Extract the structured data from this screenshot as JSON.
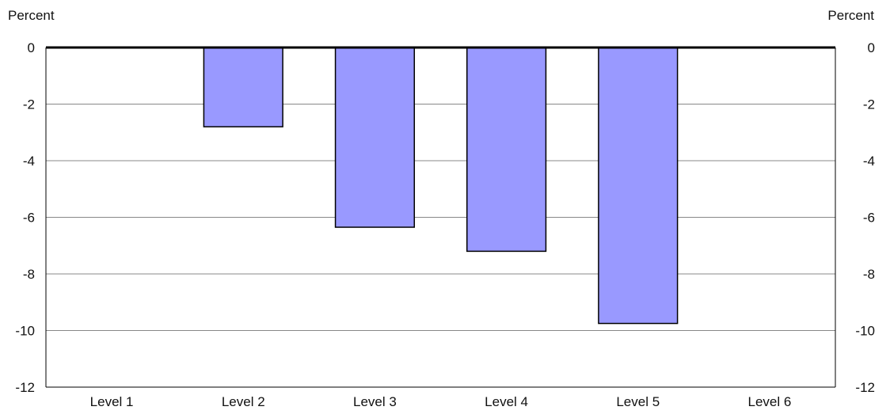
{
  "chart_data": {
    "type": "bar",
    "title": "",
    "xlabel": "",
    "ylabel": "Percent",
    "ylabel_right": "Percent",
    "categories": [
      "Level 1",
      "Level 2",
      "Level 3",
      "Level 4",
      "Level 5",
      "Level 6"
    ],
    "values": [
      0,
      -2.8,
      -6.35,
      -7.2,
      -9.75,
      0
    ],
    "ylim": [
      -12,
      0
    ],
    "yticks": [
      "0",
      "-2",
      "-4",
      "-6",
      "-8",
      "-10",
      "-12"
    ],
    "grid": true,
    "legend": "none",
    "bar_color": "#9999ff",
    "bar_edge_color": "#000000",
    "zero_line_color": "#000000",
    "grid_color": "#888888"
  }
}
